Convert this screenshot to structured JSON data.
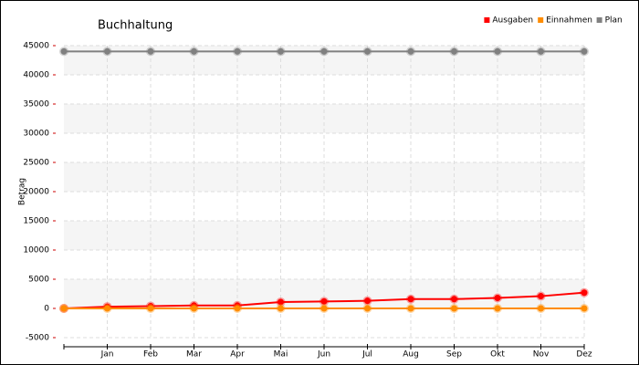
{
  "chart_data": {
    "type": "line",
    "title": "Buchhaltung",
    "y_label": "Betrag",
    "categories": [
      null,
      "Jan",
      "Feb",
      "Mar",
      "Apr",
      "Mai",
      "Jun",
      "Jul",
      "Aug",
      "Sep",
      "Okt",
      "Nov",
      "Dez"
    ],
    "series": [
      {
        "name": "Ausgaben",
        "color": "#ff0000",
        "values": [
          0,
          300,
          400,
          500,
          500,
          1100,
          1200,
          1300,
          1600,
          1600,
          1800,
          2100,
          2700
        ]
      },
      {
        "name": "Einnahmen",
        "color": "#ff8c00",
        "values": [
          0,
          0,
          0,
          0,
          0,
          0,
          0,
          0,
          0,
          0,
          0,
          0,
          0
        ]
      },
      {
        "name": "Plan",
        "color": "#808080",
        "values": [
          44000,
          44000,
          44000,
          44000,
          44000,
          44000,
          44000,
          44000,
          44000,
          44000,
          44000,
          44000,
          44000
        ]
      }
    ],
    "ylim": [
      -5000,
      45000
    ],
    "yticks": [
      -5000,
      0,
      5000,
      10000,
      15000,
      20000,
      25000,
      30000,
      35000,
      40000,
      45000
    ],
    "grid": true,
    "legend": "top-right"
  }
}
